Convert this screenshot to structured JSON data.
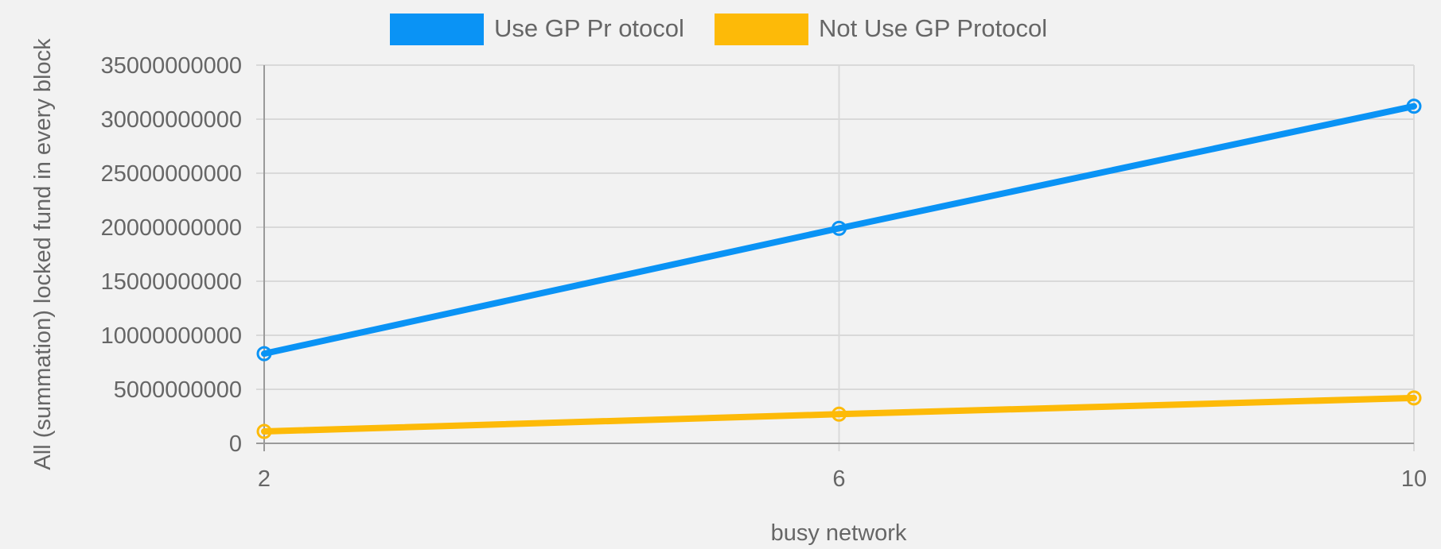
{
  "chart_data": {
    "type": "line",
    "x": [
      2,
      6,
      10
    ],
    "series": [
      {
        "name": "Use GP Pr otocol",
        "values": [
          8300000000,
          19900000000,
          31200000000
        ],
        "color": "#0a93f5"
      },
      {
        "name": "Not Use GP Protocol",
        "values": [
          1100000000,
          2700000000,
          4200000000
        ],
        "color": "#fdba08"
      }
    ],
    "xlabel": "busy network",
    "ylabel": "All (summation) locked fund in every block",
    "ylim": [
      0,
      35000000000
    ],
    "yticks": [
      "0",
      "5000000000",
      "10000000000",
      "15000000000",
      "20000000000",
      "25000000000",
      "30000000000",
      "35000000000"
    ],
    "xticks": [
      "2",
      "6",
      "10"
    ],
    "grid": true,
    "legend": "top-center"
  }
}
